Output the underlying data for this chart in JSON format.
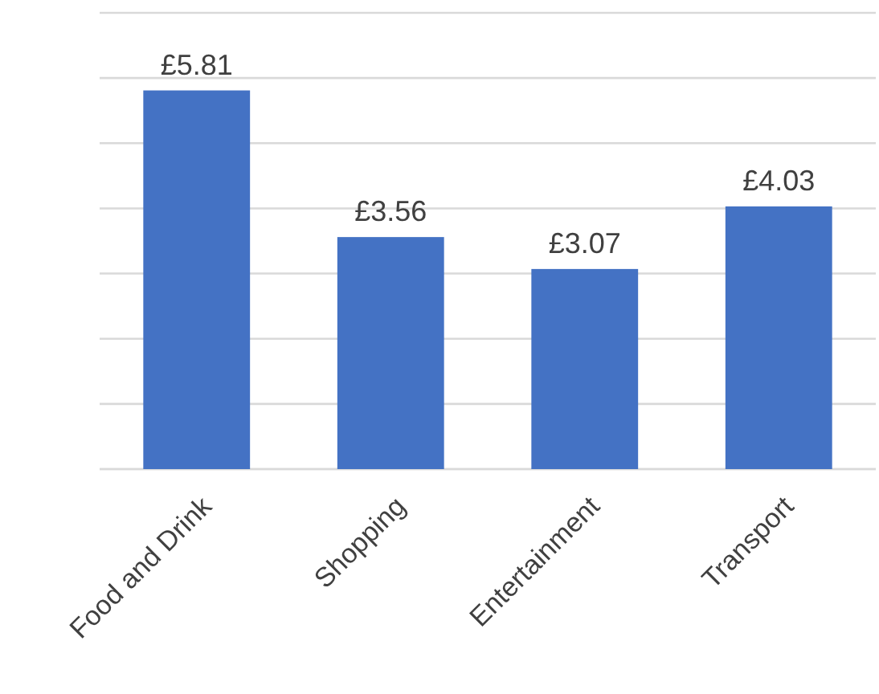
{
  "chart_data": {
    "type": "bar",
    "categories": [
      "Food and Drink",
      "Shopping",
      "Entertainment",
      "Transport"
    ],
    "values": [
      5.81,
      3.56,
      3.07,
      4.03
    ],
    "value_labels": [
      "£5.81",
      "£3.56",
      "£3.07",
      "£4.03"
    ],
    "color": "#4472c4",
    "ylim": [
      0,
      7
    ],
    "yticks": [
      {
        "value": 0,
        "label": null
      },
      {
        "value": 1,
        "label": null
      },
      {
        "value": 2,
        "label": null
      },
      {
        "value": 3,
        "label": null
      },
      {
        "value": 4,
        "label": null
      },
      {
        "value": 5,
        "label": null
      },
      {
        "value": 6,
        "label": null
      },
      {
        "value": 7,
        "label": null
      }
    ],
    "grid": "y",
    "tick_labels": "x"
  }
}
